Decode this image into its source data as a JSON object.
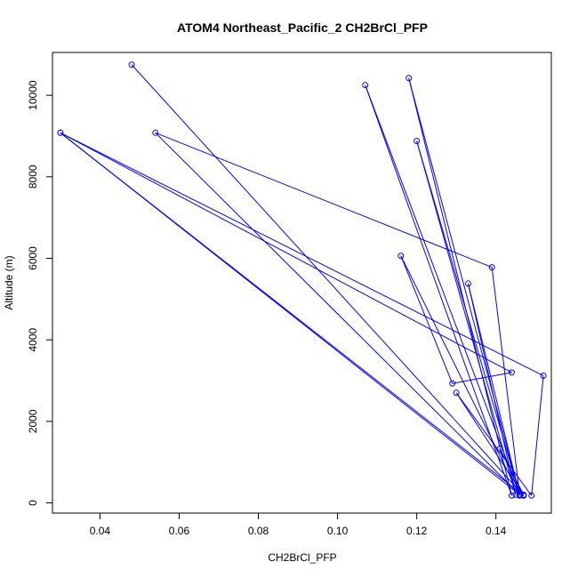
{
  "chart_data": {
    "type": "line",
    "title": "ATOM4 Northeast_Pacific_2 CH2BrCl_PFP",
    "xlabel": "CH2BrCl_PFP",
    "ylabel": "Altitude (m)",
    "xlim": [
      0.028,
      0.154
    ],
    "ylim": [
      -250,
      11050
    ],
    "xticks": [
      0.04,
      0.06,
      0.08,
      0.1,
      0.12,
      0.14
    ],
    "xtick_labels": [
      "0.04",
      "0.06",
      "0.08",
      "0.10",
      "0.12",
      "0.14"
    ],
    "yticks": [
      0,
      2000,
      4000,
      6000,
      8000,
      10000
    ],
    "ytick_labels": [
      "0",
      "2000",
      "4000",
      "6000",
      "8000",
      "10000"
    ],
    "grid": false,
    "legend": false,
    "line_color": "#0000ff",
    "series": [
      {
        "points": [
          {
            "x": 0.048,
            "y": 10750
          },
          {
            "x": 0.147,
            "y": 180
          },
          {
            "x": 0.03,
            "y": 9080
          },
          {
            "x": 0.146,
            "y": 200
          },
          {
            "x": 0.054,
            "y": 9080
          },
          {
            "x": 0.139,
            "y": 5780
          },
          {
            "x": 0.146,
            "y": 200
          },
          {
            "x": 0.107,
            "y": 10250
          },
          {
            "x": 0.144,
            "y": 180
          },
          {
            "x": 0.118,
            "y": 10420
          },
          {
            "x": 0.146,
            "y": 200
          },
          {
            "x": 0.12,
            "y": 8880
          },
          {
            "x": 0.145,
            "y": 200
          },
          {
            "x": 0.133,
            "y": 5380
          },
          {
            "x": 0.146,
            "y": 180
          },
          {
            "x": 0.116,
            "y": 6060
          },
          {
            "x": 0.129,
            "y": 2930
          },
          {
            "x": 0.144,
            "y": 3200
          },
          {
            "x": 0.03,
            "y": 9080
          },
          {
            "x": 0.152,
            "y": 3120
          },
          {
            "x": 0.149,
            "y": 180
          },
          {
            "x": 0.13,
            "y": 2700
          },
          {
            "x": 0.147,
            "y": 180
          },
          {
            "x": 0.141,
            "y": 1330
          },
          {
            "x": 0.147,
            "y": 200
          }
        ]
      }
    ]
  }
}
